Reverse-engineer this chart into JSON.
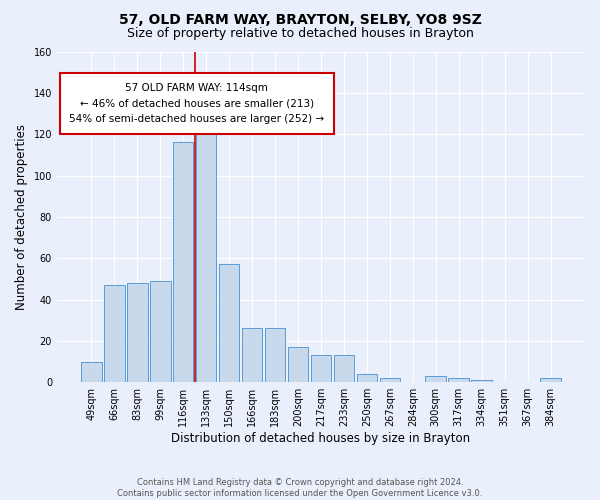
{
  "title1": "57, OLD FARM WAY, BRAYTON, SELBY, YO8 9SZ",
  "title2": "Size of property relative to detached houses in Brayton",
  "xlabel": "Distribution of detached houses by size in Brayton",
  "ylabel": "Number of detached properties",
  "footnote": "Contains HM Land Registry data © Crown copyright and database right 2024.\nContains public sector information licensed under the Open Government Licence v3.0.",
  "bar_labels": [
    "49sqm",
    "66sqm",
    "83sqm",
    "99sqm",
    "116sqm",
    "133sqm",
    "150sqm",
    "166sqm",
    "183sqm",
    "200sqm",
    "217sqm",
    "233sqm",
    "250sqm",
    "267sqm",
    "284sqm",
    "300sqm",
    "317sqm",
    "334sqm",
    "351sqm",
    "367sqm",
    "384sqm"
  ],
  "bar_values": [
    10,
    47,
    48,
    49,
    116,
    124,
    57,
    26,
    26,
    17,
    13,
    13,
    4,
    2,
    0,
    3,
    2,
    1,
    0,
    0,
    2
  ],
  "bar_color": "#c9d9ec",
  "bar_edge_color": "#5b9bd5",
  "ylim": [
    0,
    160
  ],
  "yticks": [
    0,
    20,
    40,
    60,
    80,
    100,
    120,
    140,
    160
  ],
  "property_line_x": 4.5,
  "property_line_color": "#cc0000",
  "annotation_box_text": "57 OLD FARM WAY: 114sqm\n← 46% of detached houses are smaller (213)\n54% of semi-detached houses are larger (252) →",
  "bg_color": "#eaf0fb",
  "grid_color": "#ffffff",
  "title1_fontsize": 10,
  "title2_fontsize": 9,
  "ylabel_fontsize": 8.5,
  "xlabel_fontsize": 8.5,
  "tick_fontsize": 7,
  "annot_fontsize": 7.5
}
